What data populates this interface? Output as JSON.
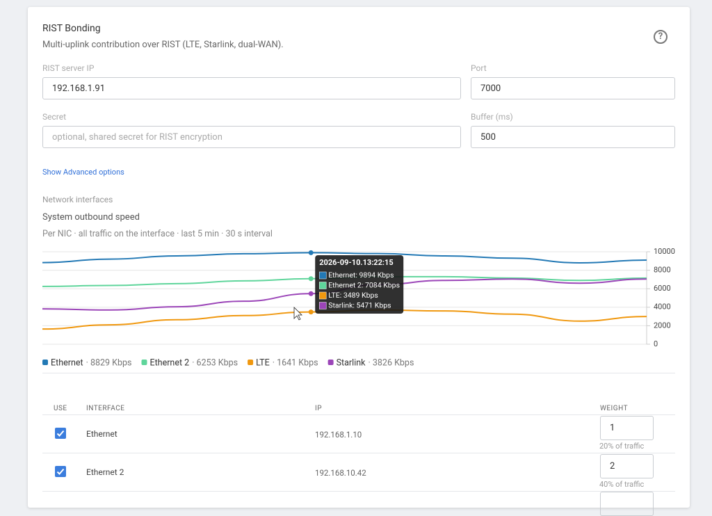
{
  "header": {
    "title": "RIST Bonding",
    "subtitle": "Multi-uplink contribution over RIST (LTE, Starlink, dual-WAN)."
  },
  "form": {
    "server_ip": {
      "label": "RIST server IP",
      "value": "192.168.1.91"
    },
    "port": {
      "label": "Port",
      "value": "7000"
    },
    "secret": {
      "label": "Secret",
      "placeholder": "optional, shared secret for RIST encryption"
    },
    "buffer": {
      "label": "Buffer (ms)",
      "value": "500"
    },
    "advanced_link": "Show Advanced options"
  },
  "section_label": "Network interfaces",
  "chart": {
    "type": "line",
    "title": "System outbound speed",
    "subtitle": "Per NIC · all traffic on the interface · last 5 min · 30 s interval",
    "categories": [
      null,
      null,
      null,
      null,
      "2026-09-10.13:22:15",
      null,
      null,
      null,
      null,
      null
    ],
    "series": [
      {
        "name": "Ethernet",
        "color": "#2379b5",
        "legend_label": "· 8829 Kbps",
        "values": [
          8829,
          9200,
          9550,
          9780,
          9894,
          9800,
          9550,
          9300,
          8800,
          9100
        ]
      },
      {
        "name": "Ethernet 2",
        "color": "#5fd59b",
        "legend_label": "· 6253 Kbps",
        "values": [
          6253,
          6350,
          6550,
          6850,
          7084,
          7300,
          7300,
          7150,
          6900,
          7150
        ]
      },
      {
        "name": "LTE",
        "color": "#f0980f",
        "legend_label": "· 1641 Kbps",
        "values": [
          1641,
          2100,
          2650,
          3100,
          3489,
          3700,
          3600,
          3250,
          2500,
          3000
        ]
      },
      {
        "name": "Starlink",
        "color": "#9b45b8",
        "legend_label": "· 3826 Kbps",
        "values": [
          3826,
          3700,
          4050,
          4650,
          5471,
          6450,
          6900,
          7050,
          6600,
          7050
        ]
      }
    ],
    "ylim": [
      0,
      10000
    ],
    "yticks": [
      0,
      2000,
      4000,
      6000,
      8000,
      10000
    ],
    "grid": true,
    "tooltip": {
      "lines": [
        "Ethernet: 9894 Kbps",
        "Ethernet 2: 7084 Kbps",
        "LTE: 3489 Kbps",
        "Starlink: 5471 Kbps"
      ]
    }
  },
  "table": {
    "headers": [
      "USE",
      "INTERFACE",
      "IP",
      "WEIGHT"
    ],
    "rows": [
      {
        "checked": true,
        "interface": "Ethernet",
        "ip": "192.168.1.10",
        "weight": "1",
        "share": "20% of traffic"
      },
      {
        "checked": true,
        "interface": "Ethernet 2",
        "ip": "192.168.10.42",
        "weight": "2",
        "share": "40% of traffic"
      }
    ]
  }
}
